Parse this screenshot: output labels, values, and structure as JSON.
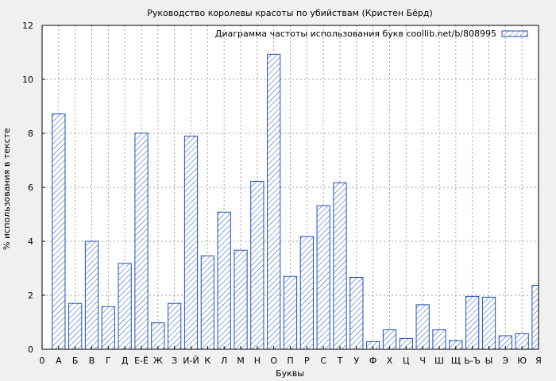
{
  "chart_data": {
    "type": "bar",
    "title": "Руководство королевы красоты по убийствам (Кристен Бёрд)",
    "xlabel": "Буквы",
    "ylabel": "% использования в тексте",
    "ylim": [
      0,
      12
    ],
    "yticks": [
      0,
      2,
      4,
      6,
      8,
      10,
      12
    ],
    "grid": true,
    "legend_position": "top-right",
    "series": [
      {
        "name": "Диаграмма частоты использования букв coollib.net/b/808995",
        "values": [
          8.72,
          1.7,
          4.0,
          1.58,
          3.18,
          8.01,
          0.98,
          1.7,
          7.9,
          3.46,
          5.08,
          3.67,
          6.22,
          10.93,
          2.7,
          4.18,
          5.32,
          6.17,
          2.66,
          0.28,
          0.72,
          0.4,
          1.65,
          0.72,
          0.32,
          1.96,
          1.93,
          0.5,
          0.58,
          2.37
        ]
      }
    ],
    "categories": [
      "А",
      "Б",
      "В",
      "Г",
      "Д",
      "Е-Ё",
      "Ж",
      "З",
      "И-Й",
      "К",
      "Л",
      "М",
      "Н",
      "О",
      "П",
      "Р",
      "С",
      "Т",
      "У",
      "Ф",
      "Х",
      "Ц",
      "Ч",
      "Ш",
      "Щ",
      "Ь-Ъ",
      "Ы",
      "Э",
      "Ю",
      "Я"
    ],
    "x_tick_first": "0",
    "colors": {
      "background": "#f0f0f0",
      "bar_stroke": "#1f4fbf",
      "hatch": "#1f4fbf",
      "bar_fill": "#ffffff",
      "grid": "#a0a0a0",
      "axis": "#000000"
    }
  }
}
